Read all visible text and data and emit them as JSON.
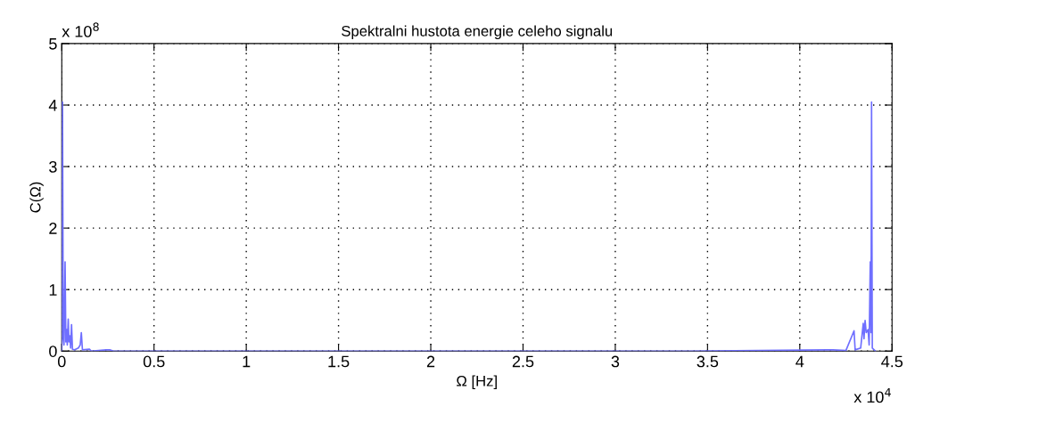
{
  "chart_data": {
    "type": "line",
    "title": "Spektralni hustota energie celeho signalu",
    "xlabel": "Ω [Hz]",
    "ylabel": "C(Ω)",
    "annotations": [
      "x 10$^{8}$",
      "x 10$^{4}$"
    ],
    "x": [
      0,
      0.004,
      0.008,
      0.012,
      0.018,
      0.022,
      0.026,
      0.03,
      0.035,
      0.039,
      0.044,
      0.048,
      0.053,
      0.058,
      0.07,
      0.09,
      0.1,
      0.106,
      0.112,
      0.15,
      0.16,
      0.24,
      0.26,
      0.28,
      1,
      2.2,
      3.4,
      4.15,
      4.18,
      4.25,
      4.294,
      4.3,
      4.33,
      4.344,
      4.348,
      4.354,
      4.36,
      4.37,
      4.376,
      4.382,
      4.386,
      4.389,
      4.393,
      4.41
    ],
    "series": [
      {
        "color": "#6f6fff",
        "values": [
          0,
          4.05,
          0.2,
          0.1,
          1.45,
          0.15,
          0.35,
          0.1,
          0.52,
          0.15,
          0.25,
          0.05,
          0.43,
          0.03,
          0.02,
          0.05,
          0.1,
          0.3,
          0.02,
          0.03,
          0,
          0.02,
          0.02,
          0,
          0,
          0,
          0,
          0.02,
          0.02,
          0.01,
          0.33,
          0.02,
          0.05,
          0.45,
          0.2,
          0.5,
          0.3,
          0.35,
          0.1,
          1.45,
          0.3,
          4.05,
          0.05,
          0
        ]
      }
    ],
    "xlim": [
      0,
      4.5
    ],
    "xticks": [
      0,
      0.5,
      1,
      1.5,
      2,
      2.5,
      3,
      3.5,
      4,
      4.5
    ],
    "ylim": [
      0,
      5
    ],
    "yticks": [
      0,
      1,
      2,
      3,
      4,
      5
    ],
    "grid": true,
    "line_style": "solid"
  }
}
